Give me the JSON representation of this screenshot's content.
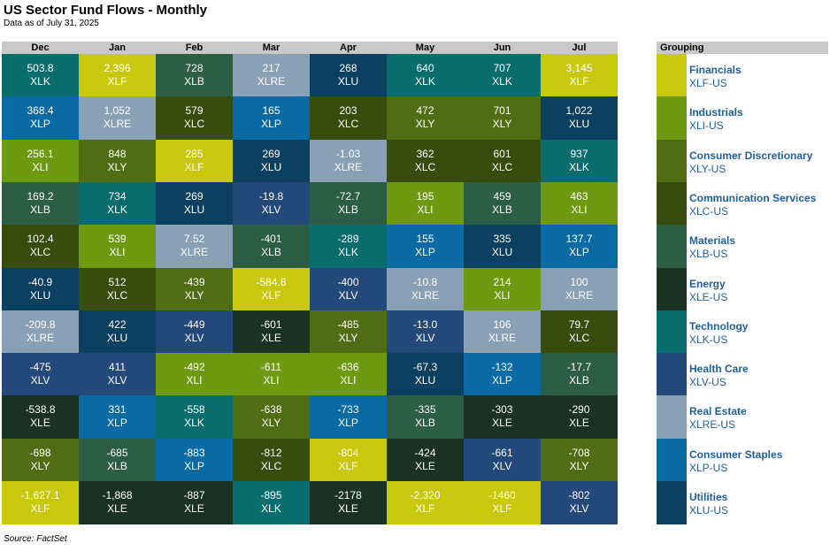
{
  "header": {
    "title": "US Sector Fund Flows - Monthly",
    "subtitle": "Data as of July 31, 2025",
    "source": "Source: FactSet",
    "grouping_label": "Grouping"
  },
  "colors": {
    "XLF": "#c8c80c",
    "XLI": "#6e9a12",
    "XLY": "#4f6e13",
    "XLC": "#374d0d",
    "XLB": "#2c5d45",
    "XLE": "#1a3223",
    "XLK": "#0a6d6d",
    "XLV": "#23487a",
    "XLRE": "#8aa0b5",
    "XLP": "#0a6aa3",
    "XLU": "#0b4060"
  },
  "chart_data": {
    "type": "table",
    "title": "US Sector Fund Flows - Monthly",
    "columns": [
      "Dec",
      "Jan",
      "Feb",
      "Mar",
      "Apr",
      "May",
      "Jun",
      "Jul"
    ],
    "cells": [
      [
        [
          "503.8",
          "XLK"
        ],
        [
          "2,396",
          "XLF"
        ],
        [
          "728",
          "XLB"
        ],
        [
          "217",
          "XLRE"
        ],
        [
          "268",
          "XLU"
        ],
        [
          "640",
          "XLK"
        ],
        [
          "707",
          "XLK"
        ],
        [
          "3,145",
          "XLF"
        ]
      ],
      [
        [
          "368.4",
          "XLP"
        ],
        [
          "1,052",
          "XLRE"
        ],
        [
          "579",
          "XLC"
        ],
        [
          "165",
          "XLP"
        ],
        [
          "203",
          "XLC"
        ],
        [
          "472",
          "XLY"
        ],
        [
          "701",
          "XLY"
        ],
        [
          "1,022",
          "XLU"
        ]
      ],
      [
        [
          "256.1",
          "XLI"
        ],
        [
          "848",
          "XLY"
        ],
        [
          "285",
          "XLF"
        ],
        [
          "269",
          "XLU"
        ],
        [
          "-1.03",
          "XLRE"
        ],
        [
          "362",
          "XLC"
        ],
        [
          "601",
          "XLC"
        ],
        [
          "937",
          "XLK"
        ]
      ],
      [
        [
          "169.2",
          "XLB"
        ],
        [
          "734",
          "XLK"
        ],
        [
          "269",
          "XLU"
        ],
        [
          "-19.8",
          "XLV"
        ],
        [
          "-72.7",
          "XLB"
        ],
        [
          "195",
          "XLI"
        ],
        [
          "459",
          "XLB"
        ],
        [
          "463",
          "XLI"
        ]
      ],
      [
        [
          "102.4",
          "XLC"
        ],
        [
          "539",
          "XLI"
        ],
        [
          "7.52",
          "XLRE"
        ],
        [
          "-401",
          "XLB"
        ],
        [
          "-289",
          "XLK"
        ],
        [
          "155",
          "XLP"
        ],
        [
          "335",
          "XLU"
        ],
        [
          "137.7",
          "XLP"
        ]
      ],
      [
        [
          "-40.9",
          "XLU"
        ],
        [
          "512",
          "XLC"
        ],
        [
          "-439",
          "XLY"
        ],
        [
          "-584.8",
          "XLF"
        ],
        [
          "-400",
          "XLV"
        ],
        [
          "-10.8",
          "XLRE"
        ],
        [
          "214",
          "XLI"
        ],
        [
          "100",
          "XLRE"
        ]
      ],
      [
        [
          "-209.8",
          "XLRE"
        ],
        [
          "422",
          "XLU"
        ],
        [
          "-449",
          "XLV"
        ],
        [
          "-601",
          "XLE"
        ],
        [
          "-485",
          "XLY"
        ],
        [
          "-13.0",
          "XLV"
        ],
        [
          "106",
          "XLRE"
        ],
        [
          "79.7",
          "XLC"
        ]
      ],
      [
        [
          "-475",
          "XLV"
        ],
        [
          "411",
          "XLV"
        ],
        [
          "-492",
          "XLI"
        ],
        [
          "-611",
          "XLI"
        ],
        [
          "-636",
          "XLI"
        ],
        [
          "-67.3",
          "XLU"
        ],
        [
          "-132",
          "XLP"
        ],
        [
          "-17.7",
          "XLB"
        ]
      ],
      [
        [
          "-538.8",
          "XLE"
        ],
        [
          "331",
          "XLP"
        ],
        [
          "-558",
          "XLK"
        ],
        [
          "-638",
          "XLY"
        ],
        [
          "-733",
          "XLP"
        ],
        [
          "-335",
          "XLB"
        ],
        [
          "-303",
          "XLE"
        ],
        [
          "-290",
          "XLE"
        ]
      ],
      [
        [
          "-698",
          "XLY"
        ],
        [
          "-685",
          "XLB"
        ],
        [
          "-883",
          "XLP"
        ],
        [
          "-812",
          "XLC"
        ],
        [
          "-804",
          "XLF"
        ],
        [
          "-424",
          "XLE"
        ],
        [
          "-661",
          "XLV"
        ],
        [
          "-708",
          "XLY"
        ]
      ],
      [
        [
          "-1,627.1",
          "XLF"
        ],
        [
          "-1,868",
          "XLE"
        ],
        [
          "-887",
          "XLE"
        ],
        [
          "-895",
          "XLK"
        ],
        [
          "-2178",
          "XLE"
        ],
        [
          "-2,320",
          "XLF"
        ],
        [
          "-1460",
          "XLF"
        ],
        [
          "-802",
          "XLV"
        ]
      ]
    ],
    "legend": [
      {
        "name": "Financials",
        "ticker": "XLF-US",
        "code": "XLF"
      },
      {
        "name": "Industrials",
        "ticker": "XLI-US",
        "code": "XLI"
      },
      {
        "name": "Consumer Discretionary",
        "ticker": "XLY-US",
        "code": "XLY"
      },
      {
        "name": "Communication Services",
        "ticker": "XLC-US",
        "code": "XLC"
      },
      {
        "name": "Materials",
        "ticker": "XLB-US",
        "code": "XLB"
      },
      {
        "name": "Energy",
        "ticker": "XLE-US",
        "code": "XLE"
      },
      {
        "name": "Technology",
        "ticker": "XLK-US",
        "code": "XLK"
      },
      {
        "name": "Health Care",
        "ticker": "XLV-US",
        "code": "XLV"
      },
      {
        "name": "Real Estate",
        "ticker": "XLRE-US",
        "code": "XLRE"
      },
      {
        "name": "Consumer Staples",
        "ticker": "XLP-US",
        "code": "XLP"
      },
      {
        "name": "Utilities",
        "ticker": "XLU-US",
        "code": "XLU"
      }
    ]
  }
}
